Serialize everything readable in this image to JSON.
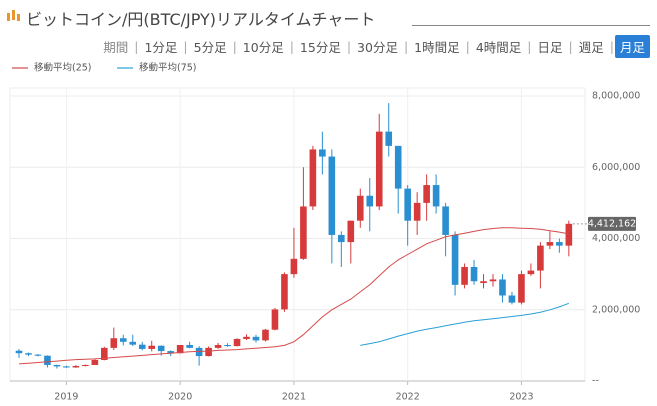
{
  "header": {
    "title": "ビットコイン/円(BTC/JPY)リアルタイムチャート"
  },
  "nav": {
    "label": "期間",
    "options": [
      "1分足",
      "5分足",
      "10分足",
      "15分足",
      "30分足",
      "1時間足",
      "4時間足",
      "日足",
      "週足",
      "月足"
    ],
    "selected_index": 9
  },
  "chart_data": {
    "type": "candlestick",
    "categories": [
      null,
      null,
      null,
      null,
      null,
      "2019",
      null,
      null,
      null,
      null,
      null,
      null,
      null,
      null,
      null,
      null,
      null,
      "2020",
      null,
      null,
      null,
      null,
      null,
      null,
      null,
      null,
      null,
      null,
      null,
      "2021",
      null,
      null,
      null,
      null,
      null,
      null,
      null,
      null,
      null,
      null,
      null,
      "2022",
      null,
      null,
      null,
      null,
      null,
      null,
      null,
      null,
      null,
      null,
      null,
      "2023",
      null,
      null,
      null,
      null,
      null
    ],
    "ohlc": {
      "open": [
        850000,
        780000,
        740000,
        710000,
        450000,
        410000,
        380000,
        420000,
        450000,
        590000,
        930000,
        1200000,
        1100000,
        1020000,
        900000,
        990000,
        840000,
        780000,
        1010000,
        930000,
        700000,
        930000,
        1010000,
        980000,
        1180000,
        1240000,
        1140000,
        1440000,
        2010000,
        3000000,
        3430000,
        4900000,
        6500000,
        6300000,
        4100000,
        3900000,
        4500000,
        5200000,
        4900000,
        7000000,
        6600000,
        5400000,
        4500000,
        5000000,
        5500000,
        4900000,
        4100000,
        2700000,
        3200000,
        2750000,
        2800000,
        2850000,
        2400000,
        2200000,
        3000000,
        3100000,
        3800000,
        3900000,
        3800000
      ],
      "high": [
        900000,
        800000,
        760000,
        720000,
        460000,
        430000,
        450000,
        460000,
        620000,
        960000,
        1500000,
        1300000,
        1300000,
        1100000,
        1130000,
        1000000,
        860000,
        1010000,
        1100000,
        980000,
        970000,
        1070000,
        1060000,
        1200000,
        1310000,
        1300000,
        1460000,
        2050000,
        3050000,
        4300000,
        6000000,
        6600000,
        7000000,
        6500000,
        4200000,
        4500000,
        5400000,
        5700000,
        7500000,
        7800000,
        6600000,
        5500000,
        5300000,
        5800000,
        5800000,
        5000000,
        4200000,
        3300000,
        3400000,
        3000000,
        3000000,
        3000000,
        2500000,
        3100000,
        3300000,
        3900000,
        4200000,
        4000000,
        4500000
      ],
      "low": [
        650000,
        700000,
        690000,
        380000,
        350000,
        370000,
        370000,
        410000,
        450000,
        580000,
        870000,
        1000000,
        980000,
        860000,
        830000,
        710000,
        700000,
        770000,
        920000,
        430000,
        690000,
        900000,
        960000,
        970000,
        1150000,
        1080000,
        1110000,
        1420000,
        1940000,
        2900000,
        3400000,
        4800000,
        5800000,
        3300000,
        3200000,
        3300000,
        4300000,
        4200000,
        4800000,
        6300000,
        4700000,
        3800000,
        4100000,
        4500000,
        4700000,
        3500000,
        2400000,
        2600000,
        2700000,
        2600000,
        2650000,
        2200000,
        2150000,
        2150000,
        2950000,
        2600000,
        3700000,
        3600000,
        3500000
      ],
      "close": [
        780000,
        740000,
        710000,
        450000,
        410000,
        380000,
        420000,
        450000,
        590000,
        930000,
        1200000,
        1100000,
        1020000,
        900000,
        990000,
        840000,
        780000,
        1010000,
        930000,
        700000,
        930000,
        1010000,
        980000,
        1180000,
        1240000,
        1140000,
        1440000,
        2010000,
        3000000,
        3430000,
        4900000,
        6500000,
        6300000,
        4100000,
        3900000,
        4500000,
        5200000,
        4900000,
        7000000,
        6600000,
        5400000,
        4500000,
        5000000,
        5500000,
        4900000,
        4100000,
        2700000,
        3200000,
        2800000,
        2800000,
        2850000,
        2400000,
        2200000,
        3000000,
        3100000,
        3800000,
        3900000,
        3800000,
        4412162
      ]
    },
    "up_color": "#d63a3a",
    "down_color": "#2a8fd0",
    "series": [
      {
        "name": "移動平均(25)",
        "color": "#d64a4a",
        "values": [
          480000,
          500000,
          520000,
          540000,
          560000,
          580000,
          600000,
          610000,
          620000,
          640000,
          660000,
          680000,
          700000,
          720000,
          740000,
          760000,
          780000,
          800000,
          820000,
          830000,
          840000,
          860000,
          870000,
          880000,
          900000,
          920000,
          940000,
          960000,
          1000000,
          1100000,
          1300000,
          1550000,
          1800000,
          2000000,
          2150000,
          2300000,
          2500000,
          2700000,
          2950000,
          3200000,
          3400000,
          3550000,
          3700000,
          3850000,
          3950000,
          4050000,
          4100000,
          4150000,
          4200000,
          4250000,
          4280000,
          4300000,
          4300000,
          4290000,
          4280000,
          4260000,
          4220000,
          4180000,
          4130000
        ]
      },
      {
        "name": "移動平均(75)",
        "color": "#2a9fd6",
        "values": [
          null,
          null,
          null,
          null,
          null,
          null,
          null,
          null,
          null,
          null,
          null,
          null,
          null,
          null,
          null,
          null,
          null,
          null,
          null,
          null,
          null,
          null,
          null,
          null,
          null,
          null,
          null,
          null,
          null,
          null,
          null,
          null,
          null,
          null,
          null,
          null,
          1000000,
          1050000,
          1100000,
          1180000,
          1260000,
          1330000,
          1400000,
          1450000,
          1500000,
          1550000,
          1600000,
          1650000,
          1690000,
          1720000,
          1750000,
          1780000,
          1810000,
          1840000,
          1880000,
          1930000,
          2000000,
          2080000,
          2180000
        ]
      }
    ],
    "last_price_label": "4,412,162",
    "ylim": [
      0,
      8000000
    ],
    "yticks": [
      {
        "value": 0,
        "label": "--"
      },
      {
        "value": 2000000,
        "label": "2,000,000"
      },
      {
        "value": 4000000,
        "label": "4,000,000"
      },
      {
        "value": 6000000,
        "label": "6,000,000"
      },
      {
        "value": 8000000,
        "label": "8,000,000"
      }
    ],
    "grid": true
  }
}
